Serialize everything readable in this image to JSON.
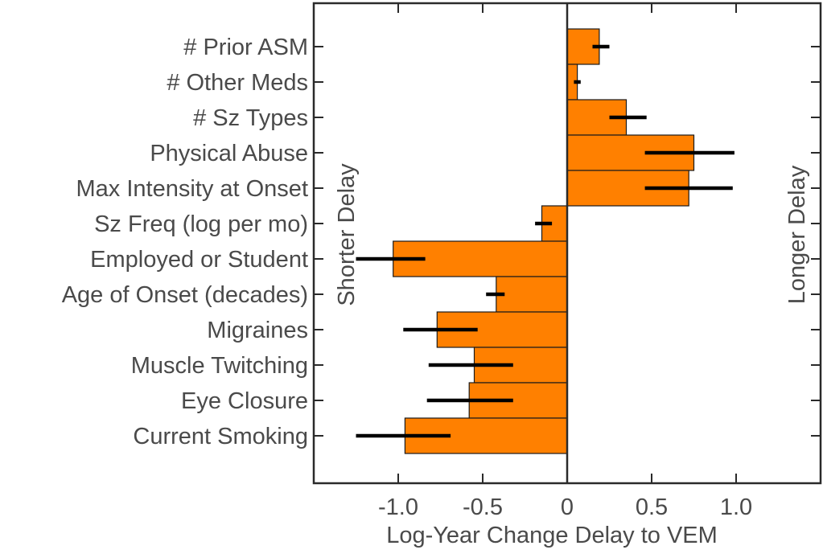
{
  "chart_data": {
    "type": "bar",
    "orientation": "horizontal",
    "categories": [
      "# Prior ASM",
      "# Other Meds",
      "# Sz Types",
      "Physical Abuse",
      "Max Intensity at Onset",
      "Sz Freq (log per mo)",
      "Employed or Student",
      "Age of Onset (decades)",
      "Migraines",
      "Muscle Twitching",
      "Eye Closure",
      "Current Smoking"
    ],
    "values": [
      0.19,
      0.06,
      0.35,
      0.75,
      0.72,
      -0.15,
      -1.03,
      -0.42,
      -0.77,
      -0.55,
      -0.58,
      -0.96
    ],
    "error_bars": [
      [
        0.15,
        0.25
      ],
      [
        0.04,
        0.08
      ],
      [
        0.25,
        0.47
      ],
      [
        0.46,
        0.99
      ],
      [
        0.46,
        0.98
      ],
      [
        -0.19,
        -0.09
      ],
      [
        -1.25,
        -0.84
      ],
      [
        -0.48,
        -0.37
      ],
      [
        -0.97,
        -0.53
      ],
      [
        -0.82,
        -0.32
      ],
      [
        -0.83,
        -0.32
      ],
      [
        -1.25,
        -0.69
      ]
    ],
    "xlabel": "Log-Year Change Delay to VEM",
    "ylabel": "",
    "xlim": [
      -1.5,
      1.5
    ],
    "xticks": [
      -1.0,
      -0.5,
      0,
      0.5,
      1.0
    ],
    "xtick_labels": [
      "-1.0",
      "-0.5",
      "0",
      "0.5",
      "1.0"
    ],
    "side_labels": {
      "left": "Shorter Delay",
      "right": "Longer Delay"
    },
    "colors": {
      "bar": "#ff8000",
      "bar_edge": "#1a1a1a",
      "error": "#000000",
      "axis": "#2a2a2a",
      "text": "#4a4a4a"
    },
    "grid": false
  }
}
